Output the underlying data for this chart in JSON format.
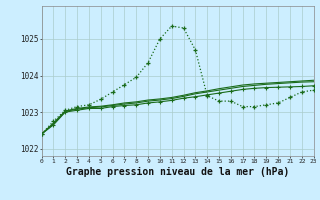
{
  "bg_color": "#cceeff",
  "grid_color": "#aacccc",
  "line_color": "#1a6b1a",
  "xlabel": "Graphe pression niveau de la mer (hPa)",
  "xlabel_fontsize": 7,
  "ylabel_ticks": [
    1022,
    1023,
    1024,
    1025
  ],
  "xlim": [
    0,
    23
  ],
  "ylim": [
    1021.8,
    1025.9
  ],
  "xtick_labels": [
    "0",
    "1",
    "2",
    "3",
    "4",
    "5",
    "6",
    "7",
    "8",
    "9",
    "10",
    "11",
    "12",
    "13",
    "14",
    "15",
    "16",
    "17",
    "18",
    "19",
    "20",
    "21",
    "22",
    "23"
  ],
  "s1_x": [
    0,
    1,
    2,
    3,
    4,
    5,
    6,
    7,
    8,
    9,
    10,
    11,
    12,
    13,
    14,
    15,
    16,
    17,
    18,
    19,
    20,
    21,
    22,
    23
  ],
  "s1_y": [
    1022.4,
    1022.75,
    1023.05,
    1023.15,
    1023.2,
    1023.35,
    1023.55,
    1023.75,
    1023.95,
    1024.35,
    1025.0,
    1025.35,
    1025.3,
    1024.7,
    1023.45,
    1023.3,
    1023.3,
    1023.15,
    1023.15,
    1023.2,
    1023.25,
    1023.4,
    1023.55,
    1023.6
  ],
  "s2_x": [
    0,
    1,
    2,
    3,
    4,
    5,
    6,
    7,
    8,
    9,
    10,
    11,
    12,
    13,
    14,
    15,
    16,
    17,
    18,
    19,
    20,
    21,
    22,
    23
  ],
  "s2_y": [
    1022.4,
    1022.65,
    1023.0,
    1023.05,
    1023.1,
    1023.1,
    1023.15,
    1023.18,
    1023.2,
    1023.25,
    1023.28,
    1023.32,
    1023.38,
    1023.42,
    1023.47,
    1023.52,
    1023.57,
    1023.62,
    1023.65,
    1023.67,
    1023.68,
    1023.69,
    1023.7,
    1023.72
  ],
  "s3_x": [
    0,
    1,
    2,
    3,
    4,
    5,
    6,
    7,
    8,
    9,
    10,
    11,
    12,
    13,
    14,
    15,
    16,
    17,
    18,
    19,
    20,
    21,
    22,
    23
  ],
  "s3_y": [
    1022.4,
    1022.68,
    1023.02,
    1023.08,
    1023.12,
    1023.14,
    1023.18,
    1023.22,
    1023.25,
    1023.3,
    1023.33,
    1023.37,
    1023.43,
    1023.5,
    1023.55,
    1023.6,
    1023.65,
    1023.7,
    1023.73,
    1023.76,
    1023.78,
    1023.8,
    1023.82,
    1023.83
  ],
  "s4_x": [
    0,
    1,
    2,
    3,
    4,
    5,
    6,
    7,
    8,
    9,
    10,
    11,
    12,
    13,
    14,
    15,
    16,
    17,
    18,
    19,
    20,
    21,
    22,
    23
  ],
  "s4_y": [
    1022.4,
    1022.7,
    1023.03,
    1023.1,
    1023.14,
    1023.16,
    1023.2,
    1023.25,
    1023.28,
    1023.33,
    1023.36,
    1023.4,
    1023.46,
    1023.53,
    1023.58,
    1023.64,
    1023.69,
    1023.74,
    1023.77,
    1023.79,
    1023.81,
    1023.83,
    1023.85,
    1023.87
  ]
}
